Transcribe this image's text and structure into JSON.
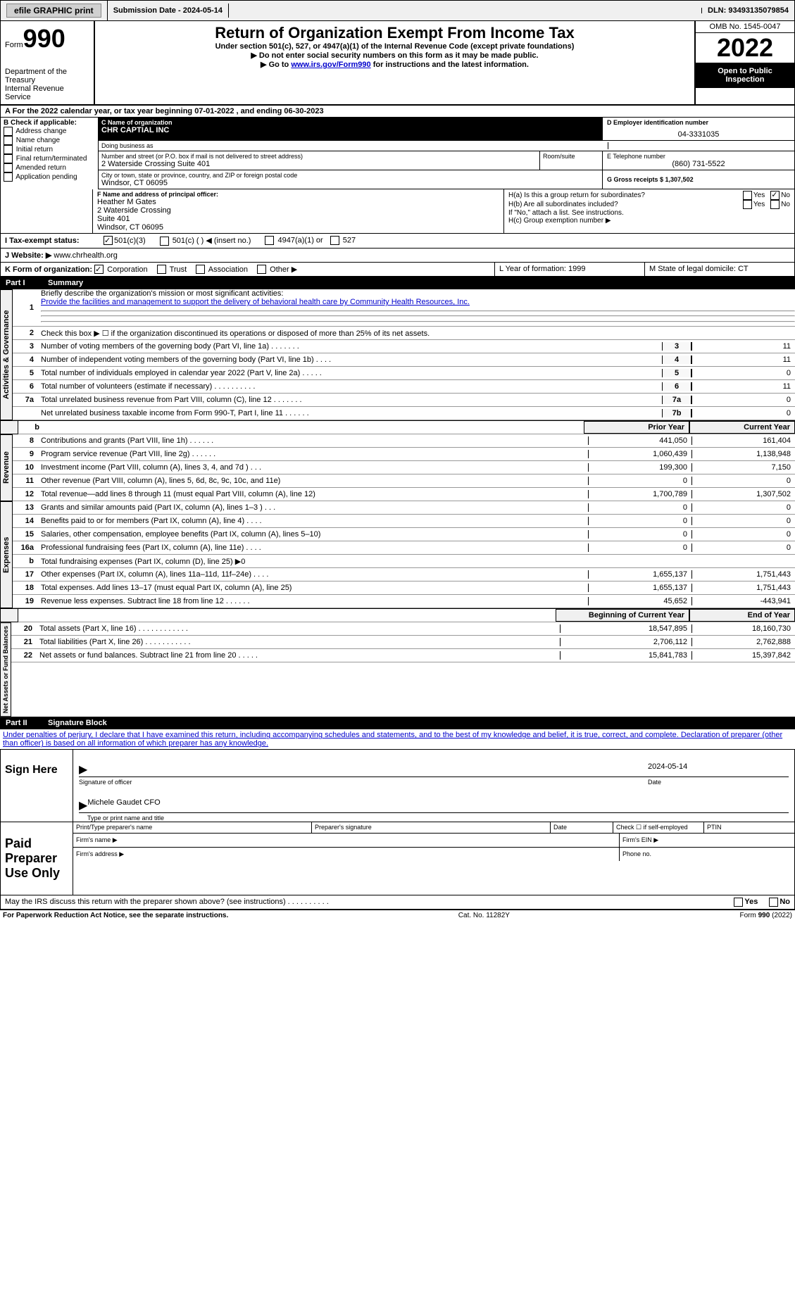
{
  "topbar": {
    "efile": "efile GRAPHIC print",
    "submission_label": "Submission Date - 2024-05-14",
    "dln_label": "DLN: 93493135079854"
  },
  "header": {
    "form_word": "Form",
    "form_number": "990",
    "dept": "Department of the Treasury",
    "irs": "Internal Revenue Service",
    "title": "Return of Organization Exempt From Income Tax",
    "subtitle": "Under section 501(c), 527, or 4947(a)(1) of the Internal Revenue Code (except private foundations)",
    "note1": "▶ Do not enter social security numbers on this form as it may be made public.",
    "note2_pre": "▶ Go to ",
    "note2_link": "www.irs.gov/Form990",
    "note2_post": " for instructions and the latest information.",
    "omb": "OMB No. 1545-0047",
    "year": "2022",
    "open": "Open to Public Inspection"
  },
  "period": {
    "text": "A For the 2022 calendar year, or tax year beginning 07-01-2022    , and ending 06-30-2023"
  },
  "sectionB": {
    "label": "B Check if applicable:",
    "opts": [
      "Address change",
      "Name change",
      "Initial return",
      "Final return/terminated",
      "Amended return",
      "Application pending"
    ]
  },
  "sectionC": {
    "name_label": "C Name of organization",
    "name": "CHR CAPTIAL INC",
    "dba_label": "Doing business as",
    "street_label": "Number and street (or P.O. box if mail is not delivered to street address)",
    "room_label": "Room/suite",
    "street": "2 Waterside Crossing Suite 401",
    "city_label": "City or town, state or province, country, and ZIP or foreign postal code",
    "city": "Windsor, CT  06095"
  },
  "sectionD": {
    "label": "D Employer identification number",
    "value": "04-3331035"
  },
  "sectionE": {
    "label": "E Telephone number",
    "value": "(860) 731-5522"
  },
  "sectionG": {
    "label": "G Gross receipts $ 1,307,502"
  },
  "sectionF": {
    "label": "F Name and address of principal officer:",
    "name": "Heather M Gates",
    "addr1": "2 Waterside Crossing",
    "addr2": "Suite 401",
    "addr3": "Windsor, CT  06095"
  },
  "sectionH": {
    "ha": "H(a)  Is this a group return for subordinates?",
    "hb": "H(b)  Are all subordinates included?",
    "hb_note": "If \"No,\" attach a list. See instructions.",
    "hc": "H(c)  Group exemption number ▶",
    "yes": "Yes",
    "no": "No"
  },
  "sectionI": {
    "label": "I    Tax-exempt status:",
    "opt1": "501(c)(3)",
    "opt2": "501(c) (   ) ◀ (insert no.)",
    "opt3": "4947(a)(1) or",
    "opt4": "527"
  },
  "sectionJ": {
    "label": "J   Website: ▶",
    "value": "www.chrhealth.org"
  },
  "sectionK": {
    "label": "K Form of organization:",
    "opts": [
      "Corporation",
      "Trust",
      "Association",
      "Other ▶"
    ]
  },
  "sectionL": {
    "text": "L Year of formation: 1999"
  },
  "sectionM": {
    "text": "M State of legal domicile: CT"
  },
  "part1": {
    "roman": "Part I",
    "title": "Summary",
    "line1_label": "Briefly describe the organization's mission or most significant activities:",
    "line1_text": "Provide the facilities and management to support the delivery of behavioral health care by Community Health Resources, Inc.",
    "line2": "Check this box ▶ ☐ if the organization discontinued its operations or disposed of more than 25% of its net assets.",
    "rows_gov": [
      {
        "n": "3",
        "d": "Number of voting members of the governing body (Part VI, line 1a)   .    .    .    .    .    .    .",
        "b": "3",
        "v": "11"
      },
      {
        "n": "4",
        "d": "Number of independent voting members of the governing body (Part VI, line 1b)  .    .    .    .",
        "b": "4",
        "v": "11"
      },
      {
        "n": "5",
        "d": "Total number of individuals employed in calendar year 2022 (Part V, line 2a)  .    .    .    .    .",
        "b": "5",
        "v": "0"
      },
      {
        "n": "6",
        "d": "Total number of volunteers (estimate if necessary)    .    .    .    .    .    .    .    .    .    .",
        "b": "6",
        "v": "11"
      },
      {
        "n": "7a",
        "d": "Total unrelated business revenue from Part VIII, column (C), line 12  .    .    .    .    .    .    .",
        "b": "7a",
        "v": "0"
      },
      {
        "n": "",
        "d": "Net unrelated business taxable income from Form 990-T, Part I, line 11  .    .    .    .    .    .",
        "b": "7b",
        "v": "0"
      }
    ],
    "prior_label": "Prior Year",
    "current_label": "Current Year",
    "rows_rev": [
      {
        "n": "8",
        "d": "Contributions and grants (Part VIII, line 1h)    .    .    .    .    .    .",
        "p": "441,050",
        "c": "161,404"
      },
      {
        "n": "9",
        "d": "Program service revenue (Part VIII, line 2g)    .    .    .    .    .    .",
        "p": "1,060,439",
        "c": "1,138,948"
      },
      {
        "n": "10",
        "d": "Investment income (Part VIII, column (A), lines 3, 4, and 7d )    .    .    .",
        "p": "199,300",
        "c": "7,150"
      },
      {
        "n": "11",
        "d": "Other revenue (Part VIII, column (A), lines 5, 6d, 8c, 9c, 10c, and 11e)",
        "p": "0",
        "c": "0"
      },
      {
        "n": "12",
        "d": "Total revenue—add lines 8 through 11 (must equal Part VIII, column (A), line 12)",
        "p": "1,700,789",
        "c": "1,307,502"
      }
    ],
    "rows_exp": [
      {
        "n": "13",
        "d": "Grants and similar amounts paid (Part IX, column (A), lines 1–3 )   .    .    .",
        "p": "0",
        "c": "0"
      },
      {
        "n": "14",
        "d": "Benefits paid to or for members (Part IX, column (A), line 4)  .    .    .    .",
        "p": "0",
        "c": "0"
      },
      {
        "n": "15",
        "d": "Salaries, other compensation, employee benefits (Part IX, column (A), lines 5–10)",
        "p": "0",
        "c": "0"
      },
      {
        "n": "16a",
        "d": "Professional fundraising fees (Part IX, column (A), line 11e)   .    .    .    .",
        "p": "0",
        "c": "0"
      },
      {
        "n": "b",
        "d": "Total fundraising expenses (Part IX, column (D), line 25) ▶0",
        "p": "",
        "c": "",
        "shaded": true
      },
      {
        "n": "17",
        "d": "Other expenses (Part IX, column (A), lines 11a–11d, 11f–24e)    .    .    .    .",
        "p": "1,655,137",
        "c": "1,751,443"
      },
      {
        "n": "18",
        "d": "Total expenses. Add lines 13–17 (must equal Part IX, column (A), line 25)",
        "p": "1,655,137",
        "c": "1,751,443"
      },
      {
        "n": "19",
        "d": "Revenue less expenses. Subtract line 18 from line 12  .    .    .    .    .    .",
        "p": "45,652",
        "c": "-443,941"
      }
    ],
    "begin_label": "Beginning of Current Year",
    "end_label": "End of Year",
    "rows_net": [
      {
        "n": "20",
        "d": "Total assets (Part X, line 16)  .    .    .    .    .    .    .    .    .    .    .    .",
        "p": "18,547,895",
        "c": "18,160,730"
      },
      {
        "n": "21",
        "d": "Total liabilities (Part X, line 26)    .    .    .    .    .    .    .    .    .    .    .",
        "p": "2,706,112",
        "c": "2,762,888"
      },
      {
        "n": "22",
        "d": "Net assets or fund balances. Subtract line 21 from line 20   .    .    .    .    .",
        "p": "15,841,783",
        "c": "15,397,842"
      }
    ],
    "vlabels": {
      "gov": "Activities & Governance",
      "rev": "Revenue",
      "exp": "Expenses",
      "net": "Net Assets or Fund Balances"
    }
  },
  "part2": {
    "roman": "Part II",
    "title": "Signature Block",
    "decl": "Under penalties of perjury, I declare that I have examined this return, including accompanying schedules and statements, and to the best of my knowledge and belief, it is true, correct, and complete. Declaration of preparer (other than officer) is based on all information of which preparer has any knowledge.",
    "sign_here": "Sign Here",
    "sig_officer": "Signature of officer",
    "sig_date": "2024-05-14",
    "date_label": "Date",
    "name_title": "Michele Gaudet CFO",
    "type_name": "Type or print name and title",
    "paid": "Paid Preparer Use Only",
    "prep_name": "Print/Type preparer's name",
    "prep_sig": "Preparer's signature",
    "check_self": "Check ☐ if self-employed",
    "ptin": "PTIN",
    "firm_name": "Firm's name    ▶",
    "firm_ein": "Firm's EIN ▶",
    "firm_addr": "Firm's address ▶",
    "phone": "Phone no.",
    "may_discuss": "May the IRS discuss this return with the preparer shown above? (see instructions)   .    .    .    .    .    .    .    .    .    .",
    "yes": "Yes",
    "no": "No"
  },
  "footer": {
    "notice": "For Paperwork Reduction Act Notice, see the separate instructions.",
    "cat": "Cat. No. 11282Y",
    "form": "Form 990 (2022)"
  }
}
